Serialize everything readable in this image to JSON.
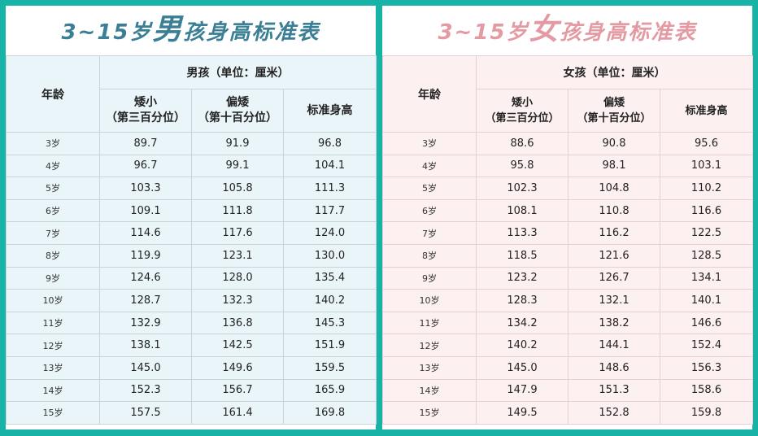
{
  "boys": {
    "title_prefix": "3~15岁",
    "title_big": "男",
    "title_suffix": "孩身高标准表",
    "age_header": "年龄",
    "group_header": "男孩（单位：厘米）",
    "col_short": [
      "矮小",
      "（第三百分位）"
    ],
    "col_lower": [
      "偏矮",
      "（第十百分位）"
    ],
    "col_standard": "标准身高",
    "rows": [
      {
        "age": "3岁",
        "short": "89.7",
        "lower": "91.9",
        "standard": "96.8"
      },
      {
        "age": "4岁",
        "short": "96.7",
        "lower": "99.1",
        "standard": "104.1"
      },
      {
        "age": "5岁",
        "short": "103.3",
        "lower": "105.8",
        "standard": "111.3"
      },
      {
        "age": "6岁",
        "short": "109.1",
        "lower": "111.8",
        "standard": "117.7"
      },
      {
        "age": "7岁",
        "short": "114.6",
        "lower": "117.6",
        "standard": "124.0"
      },
      {
        "age": "8岁",
        "short": "119.9",
        "lower": "123.1",
        "standard": "130.0"
      },
      {
        "age": "9岁",
        "short": "124.6",
        "lower": "128.0",
        "standard": "135.4"
      },
      {
        "age": "10岁",
        "short": "128.7",
        "lower": "132.3",
        "standard": "140.2"
      },
      {
        "age": "11岁",
        "short": "132.9",
        "lower": "136.8",
        "standard": "145.3"
      },
      {
        "age": "12岁",
        "short": "138.1",
        "lower": "142.5",
        "standard": "151.9"
      },
      {
        "age": "13岁",
        "short": "145.0",
        "lower": "149.6",
        "standard": "159.5"
      },
      {
        "age": "14岁",
        "short": "152.3",
        "lower": "156.7",
        "standard": "165.9"
      },
      {
        "age": "15岁",
        "short": "157.5",
        "lower": "161.4",
        "standard": "169.8"
      }
    ]
  },
  "girls": {
    "title_prefix": "3~15岁",
    "title_big": "女",
    "title_suffix": "孩身高标准表",
    "age_header": "年龄",
    "group_header": "女孩（单位：厘米）",
    "col_short": [
      "矮小",
      "（第三百分位）"
    ],
    "col_lower": [
      "偏矮",
      "（第十百分位）"
    ],
    "col_standard": "标准身高",
    "rows": [
      {
        "age": "3岁",
        "short": "88.6",
        "lower": "90.8",
        "standard": "95.6"
      },
      {
        "age": "4岁",
        "short": "95.8",
        "lower": "98.1",
        "standard": "103.1"
      },
      {
        "age": "5岁",
        "short": "102.3",
        "lower": "104.8",
        "standard": "110.2"
      },
      {
        "age": "6岁",
        "short": "108.1",
        "lower": "110.8",
        "standard": "116.6"
      },
      {
        "age": "7岁",
        "short": "113.3",
        "lower": "116.2",
        "standard": "122.5"
      },
      {
        "age": "8岁",
        "short": "118.5",
        "lower": "121.6",
        "standard": "128.5"
      },
      {
        "age": "9岁",
        "short": "123.2",
        "lower": "126.7",
        "standard": "134.1"
      },
      {
        "age": "10岁",
        "short": "128.3",
        "lower": "132.1",
        "standard": "140.1"
      },
      {
        "age": "11岁",
        "short": "134.2",
        "lower": "138.2",
        "standard": "146.6"
      },
      {
        "age": "12岁",
        "short": "140.2",
        "lower": "144.1",
        "standard": "152.4"
      },
      {
        "age": "13岁",
        "short": "145.0",
        "lower": "148.6",
        "standard": "156.3"
      },
      {
        "age": "14岁",
        "short": "147.9",
        "lower": "151.3",
        "standard": "158.6"
      },
      {
        "age": "15岁",
        "short": "149.5",
        "lower": "152.8",
        "standard": "159.8"
      }
    ]
  }
}
